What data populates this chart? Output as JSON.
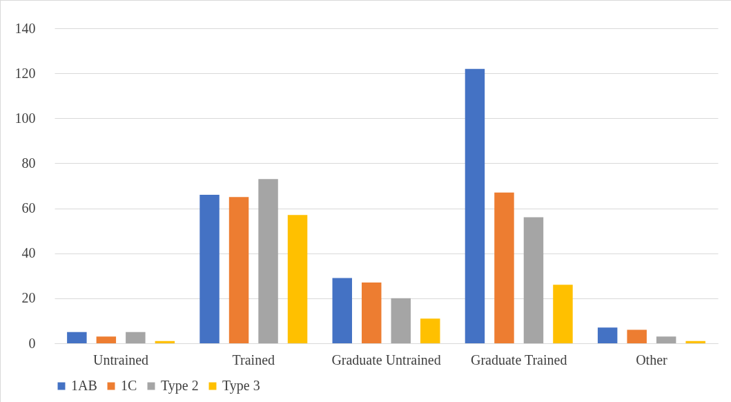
{
  "chart_data": {
    "type": "bar",
    "categories": [
      "Untrained",
      "Trained",
      "Graduate Untrained",
      "Graduate Trained",
      "Other"
    ],
    "series": [
      {
        "name": "1AB",
        "color": "#4472c4",
        "values": [
          5,
          66,
          29,
          122,
          7
        ]
      },
      {
        "name": "1C",
        "color": "#ed7d31",
        "values": [
          3,
          65,
          27,
          67,
          6
        ]
      },
      {
        "name": "Type 2",
        "color": "#a5a5a5",
        "values": [
          5,
          73,
          20,
          56,
          3
        ]
      },
      {
        "name": "Type 3",
        "color": "#ffc000",
        "values": [
          1,
          57,
          11,
          26,
          1
        ]
      }
    ],
    "ylim": [
      0,
      140
    ],
    "yticks": [
      0,
      20,
      40,
      60,
      80,
      100,
      120,
      140
    ],
    "grid": "y",
    "legend": "bottom"
  }
}
